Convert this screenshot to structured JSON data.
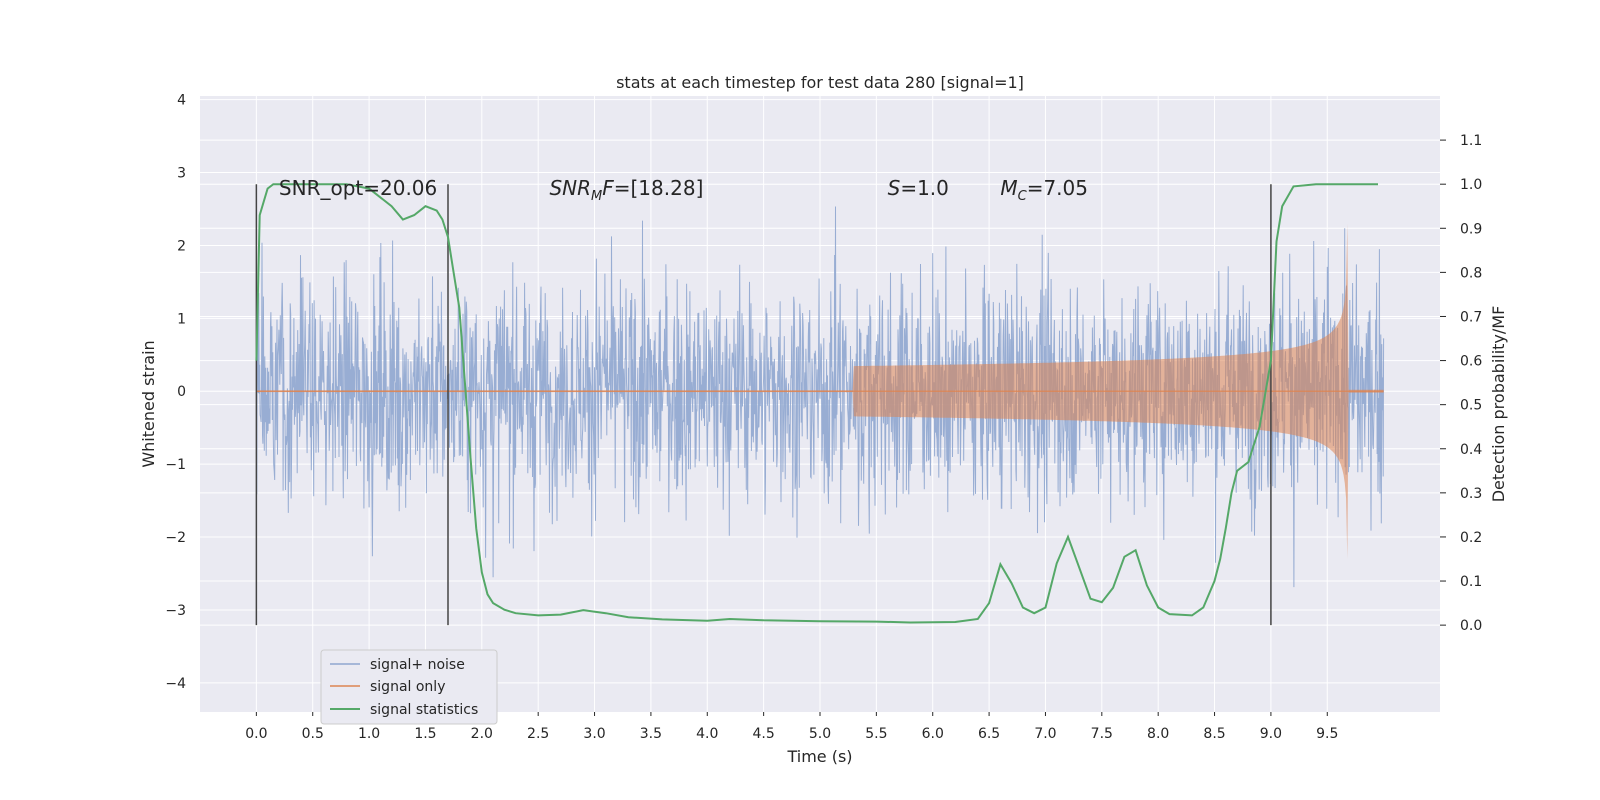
{
  "chart_data": {
    "type": "line",
    "title": "stats at each timestep for test data 280 [signal=1]",
    "xlabel": "Time (s)",
    "ylabel": "Whitened strain",
    "y2label": "Detection probability/MF",
    "xlim": [
      -0.5,
      10.5
    ],
    "ylim": [
      -4.4,
      4.05
    ],
    "y2lim": [
      -0.197,
      1.2
    ],
    "xticks": [
      "0.0",
      "0.5",
      "1.0",
      "1.5",
      "2.0",
      "2.5",
      "3.0",
      "3.5",
      "4.0",
      "4.5",
      "5.0",
      "5.5",
      "6.0",
      "6.5",
      "7.0",
      "7.5",
      "8.0",
      "8.5",
      "9.0",
      "9.5"
    ],
    "yticks": [
      "4",
      "3",
      "2",
      "1",
      "0",
      "−1",
      "−2",
      "−3",
      "−4"
    ],
    "y2ticks": [
      "1.1",
      "1.0",
      "0.9",
      "0.8",
      "0.7",
      "0.6",
      "0.5",
      "0.4",
      "0.3",
      "0.2",
      "0.1",
      "0.0"
    ],
    "grid": true,
    "legend_position": "lower-left",
    "background_color": "#eaeaf2",
    "annotations": [
      {
        "text": "SNR_opt=20.06",
        "x": 0.2,
        "y": 2.8
      },
      {
        "text": "SNRMF=[18.28]",
        "x": 2.6,
        "y": 2.8,
        "math": "SNR_MF"
      },
      {
        "text": "S=1.0",
        "x": 5.6,
        "y": 2.8,
        "math": "S"
      },
      {
        "text": "MC=7.05",
        "x": 6.6,
        "y": 2.8,
        "math": "M_C"
      }
    ],
    "vertical_lines_x": [
      0.0,
      1.7,
      9.0
    ],
    "series": [
      {
        "name": "signal+ noise",
        "color": "#8fa6cf",
        "x_range": [
          0.0,
          10.0
        ],
        "amplitude_envelope": {
          "sigma": 1.0,
          "typical_max": 3.3,
          "typical_min": -3.3
        }
      },
      {
        "name": "signal only",
        "color": "#dd8452",
        "chirp": {
          "start_time": 5.3,
          "merger_time": 9.68,
          "peak_amplitude": 2.6,
          "amplitude_at_9s": 0.55,
          "amplitude_at_7s": 0.22
        }
      },
      {
        "name": "signal statistics",
        "color": "#55a868",
        "axis": "right",
        "x": [
          0.0,
          0.03,
          0.1,
          0.15,
          0.3,
          0.5,
          0.8,
          1.0,
          1.2,
          1.3,
          1.4,
          1.5,
          1.6,
          1.65,
          1.7,
          1.75,
          1.8,
          1.85,
          1.9,
          1.95,
          2.0,
          2.05,
          2.1,
          2.2,
          2.3,
          2.5,
          2.7,
          2.9,
          3.1,
          3.3,
          3.6,
          4.0,
          4.2,
          4.5,
          5.0,
          5.5,
          5.8,
          6.2,
          6.4,
          6.5,
          6.6,
          6.7,
          6.8,
          6.9,
          7.0,
          7.1,
          7.2,
          7.3,
          7.4,
          7.5,
          7.6,
          7.7,
          7.8,
          7.9,
          8.0,
          8.1,
          8.3,
          8.4,
          8.5,
          8.55,
          8.6,
          8.65,
          8.7,
          8.8,
          8.9,
          9.0,
          9.05,
          9.1,
          9.2,
          9.4,
          9.6,
          9.8,
          9.95
        ],
        "values": [
          0.6,
          0.93,
          0.99,
          1.0,
          1.0,
          1.0,
          1.0,
          0.99,
          0.95,
          0.92,
          0.93,
          0.95,
          0.94,
          0.92,
          0.88,
          0.8,
          0.72,
          0.55,
          0.38,
          0.22,
          0.12,
          0.07,
          0.05,
          0.035,
          0.027,
          0.022,
          0.024,
          0.034,
          0.027,
          0.018,
          0.013,
          0.01,
          0.014,
          0.011,
          0.009,
          0.008,
          0.006,
          0.007,
          0.014,
          0.05,
          0.138,
          0.095,
          0.04,
          0.027,
          0.04,
          0.14,
          0.2,
          0.13,
          0.06,
          0.052,
          0.085,
          0.155,
          0.17,
          0.09,
          0.04,
          0.025,
          0.022,
          0.04,
          0.1,
          0.15,
          0.22,
          0.3,
          0.35,
          0.37,
          0.45,
          0.6,
          0.87,
          0.95,
          0.995,
          1.0,
          1.0,
          1.0,
          1.0
        ]
      }
    ]
  }
}
